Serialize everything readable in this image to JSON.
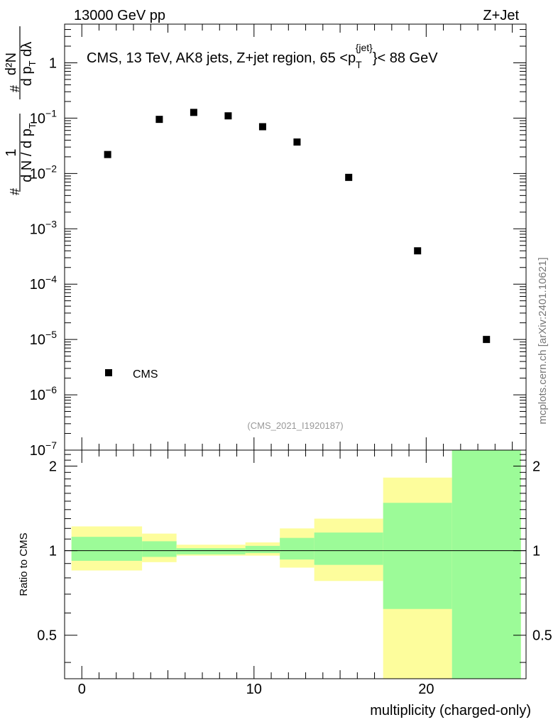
{
  "header": {
    "left": "13000 GeV pp",
    "right": "Z+Jet"
  },
  "watermark": "mcplots.cern.ch [arXiv:2401.10621]",
  "analysis_id": "(CMS_2021_I1920187)",
  "chart_data": {
    "type": "scatter",
    "title": "CMS, 13 TeV, AK8 jets, Z+jet region, 65 <p_T^{jet}< 88 GeV",
    "title_parts": {
      "pre": "CMS, 13 TeV, AK8 jets, Z+jet region, 65 <p",
      "sub": "T",
      "sup": "{jet}",
      "post": "}< 88 GeV"
    },
    "xlabel": "multiplicity (charged-only)",
    "ylabel": "1/dN/dp_T  d²N/dp_T dλ",
    "ylabel_parts": {
      "frac1_num": "1",
      "frac1_den": "d N / d p",
      "frac1_den_sub": "T",
      "frac2_num": "d²N",
      "frac2_den": "d p",
      "frac2_den_sub": "T",
      "frac2_den_tail": " dλ",
      "hash": "#"
    },
    "xlim": [
      -1,
      25.8
    ],
    "ylim": [
      1e-07,
      5
    ],
    "yscale": "log",
    "x_ticks": [
      0,
      10,
      20
    ],
    "y_ticks": [
      {
        "v": 1,
        "label": "1"
      },
      {
        "v": 0.1,
        "base": "10",
        "exp": "−1"
      },
      {
        "v": 0.01,
        "base": "10",
        "exp": "−2"
      },
      {
        "v": 0.001,
        "base": "10",
        "exp": "−3"
      },
      {
        "v": 0.0001,
        "base": "10",
        "exp": "−4"
      },
      {
        "v": 1e-05,
        "base": "10",
        "exp": "−5"
      },
      {
        "v": 1e-06,
        "base": "10",
        "exp": "−6"
      },
      {
        "v": 1e-07,
        "base": "10",
        "exp": "−7"
      }
    ],
    "series": [
      {
        "name": "CMS",
        "marker": "square",
        "color": "#000000",
        "points": [
          {
            "x": 1.5,
            "y": 0.022
          },
          {
            "x": 4.5,
            "y": 0.095
          },
          {
            "x": 6.5,
            "y": 0.127
          },
          {
            "x": 8.5,
            "y": 0.11
          },
          {
            "x": 10.5,
            "y": 0.07
          },
          {
            "x": 12.5,
            "y": 0.037
          },
          {
            "x": 15.5,
            "y": 0.0085
          },
          {
            "x": 19.5,
            "y": 0.0004
          },
          {
            "x": 23.5,
            "y": 1e-05
          }
        ]
      }
    ],
    "legend": {
      "entries": [
        "CMS"
      ],
      "position": "bottom-left"
    },
    "ratio": {
      "ylabel": "Ratio to CMS",
      "ylim": [
        0.35,
        2.28
      ],
      "ticks": [
        0.5,
        1,
        2
      ],
      "tick_labels": [
        "0.5",
        "1",
        "2"
      ],
      "reference_line": 1,
      "inner_color": "#9cfb98",
      "outer_color": "#fdfd9c",
      "bands": [
        {
          "x0": -0.6,
          "x1": 3.5,
          "outer": [
            0.85,
            1.22
          ],
          "inner": [
            0.92,
            1.12
          ]
        },
        {
          "x0": 3.5,
          "x1": 5.5,
          "outer": [
            0.91,
            1.15
          ],
          "inner": [
            0.95,
            1.08
          ]
        },
        {
          "x0": 5.5,
          "x1": 9.5,
          "outer": [
            0.96,
            1.05
          ],
          "inner": [
            0.97,
            1.02
          ]
        },
        {
          "x0": 9.5,
          "x1": 11.5,
          "outer": [
            0.96,
            1.07
          ],
          "inner": [
            0.98,
            1.04
          ]
        },
        {
          "x0": 11.5,
          "x1": 13.5,
          "outer": [
            0.87,
            1.2
          ],
          "inner": [
            0.93,
            1.11
          ]
        },
        {
          "x0": 13.5,
          "x1": 17.5,
          "outer": [
            0.78,
            1.3
          ],
          "inner": [
            0.89,
            1.16
          ]
        },
        {
          "x0": 17.5,
          "x1": 21.5,
          "outer": [
            0.35,
            1.82
          ],
          "inner": [
            0.62,
            1.48
          ]
        },
        {
          "x0": 21.5,
          "x1": 25.5,
          "outer": [
            0.35,
            2.28
          ],
          "inner": [
            0.35,
            2.28
          ]
        }
      ]
    }
  }
}
